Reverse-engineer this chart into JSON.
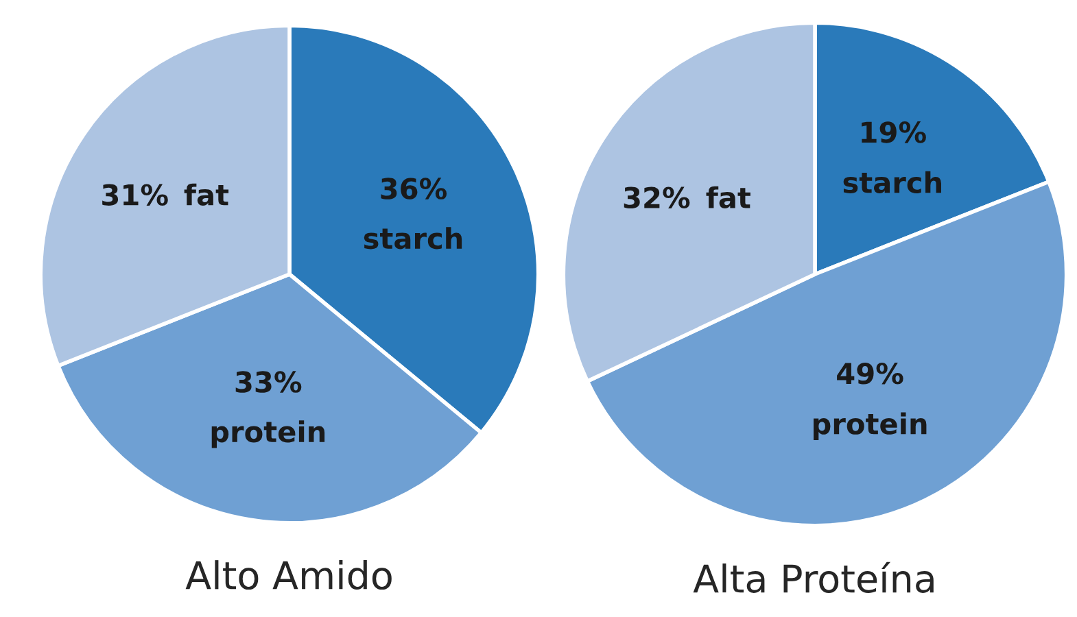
{
  "chart_data": [
    {
      "type": "pie",
      "title": "Alto Amido",
      "categories": [
        "starch",
        "protein",
        "fat"
      ],
      "values": [
        36,
        33,
        31
      ],
      "colors": [
        "#2a7aba",
        "#6fa0d3",
        "#adc4e2"
      ],
      "value_labels": [
        "36%",
        "33%",
        "31%"
      ]
    },
    {
      "type": "pie",
      "title": "Alta Proteína",
      "categories": [
        "starch",
        "protein",
        "fat"
      ],
      "values": [
        19,
        49,
        32
      ],
      "colors": [
        "#2a7aba",
        "#6fa0d3",
        "#adc4e2"
      ],
      "value_labels": [
        "19%",
        "49%",
        "32%"
      ]
    }
  ]
}
